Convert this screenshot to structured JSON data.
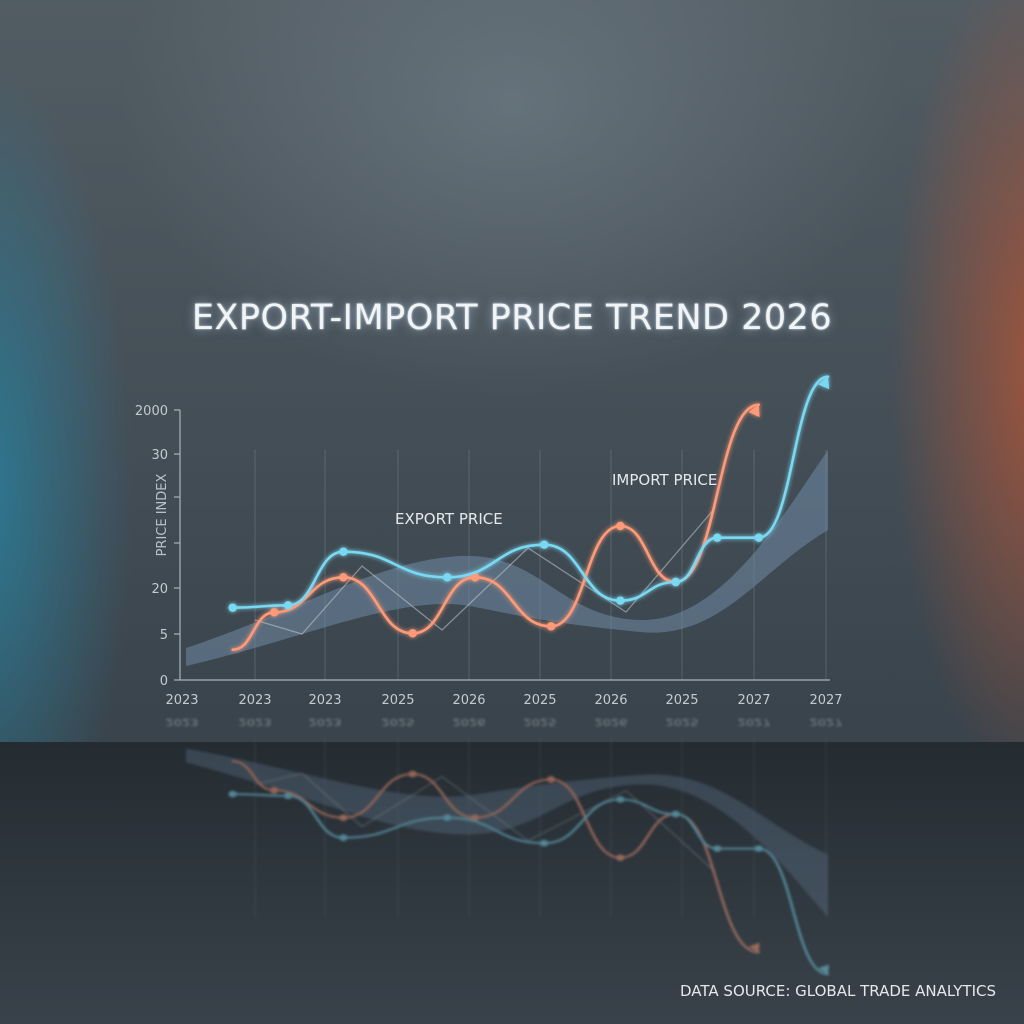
{
  "title": "EXPORT-IMPORT PRICE TREND 2026",
  "footer": "DATA SOURCE: GLOBAL TRADE ANALYTICS",
  "colors": {
    "export": "#ff9a78",
    "import": "#7ad9f2",
    "band": "#6f8aa6",
    "axis": "#a9b3ba"
  },
  "chart_data": {
    "type": "line",
    "title": "EXPORT-IMPORT PRICE TREND 2026",
    "ylabel": "PRICE INDEX",
    "xlabel": "",
    "x_tick_labels": [
      "2023",
      "2023",
      "2023",
      "2025",
      "2026",
      "2025",
      "2026",
      "2025",
      "2027",
      "2027"
    ],
    "y_tick_labels": [
      "0",
      "5",
      "20",
      "",
      "",
      "30",
      "2000"
    ],
    "ylim": [
      0,
      6
    ],
    "xlim": [
      0,
      9
    ],
    "grid": "vertical",
    "series": [
      {
        "name": "EXPORT PRICE",
        "color": "#ff9a78",
        "x": [
          0.4,
          1.0,
          2.0,
          3.0,
          3.9,
          5.0,
          6.0,
          6.8,
          8.0
        ],
        "y": [
          0.65,
          1.45,
          2.2,
          1.0,
          2.2,
          1.15,
          3.3,
          2.1,
          5.9
        ]
      },
      {
        "name": "IMPORT PRICE",
        "color": "#7ad9f2",
        "x": [
          0.4,
          1.2,
          2.0,
          3.5,
          4.9,
          6.0,
          6.8,
          7.4,
          8.0,
          9.0
        ],
        "y": [
          1.55,
          1.6,
          2.75,
          2.2,
          2.9,
          1.7,
          2.1,
          3.05,
          3.05,
          6.5
        ]
      }
    ]
  }
}
